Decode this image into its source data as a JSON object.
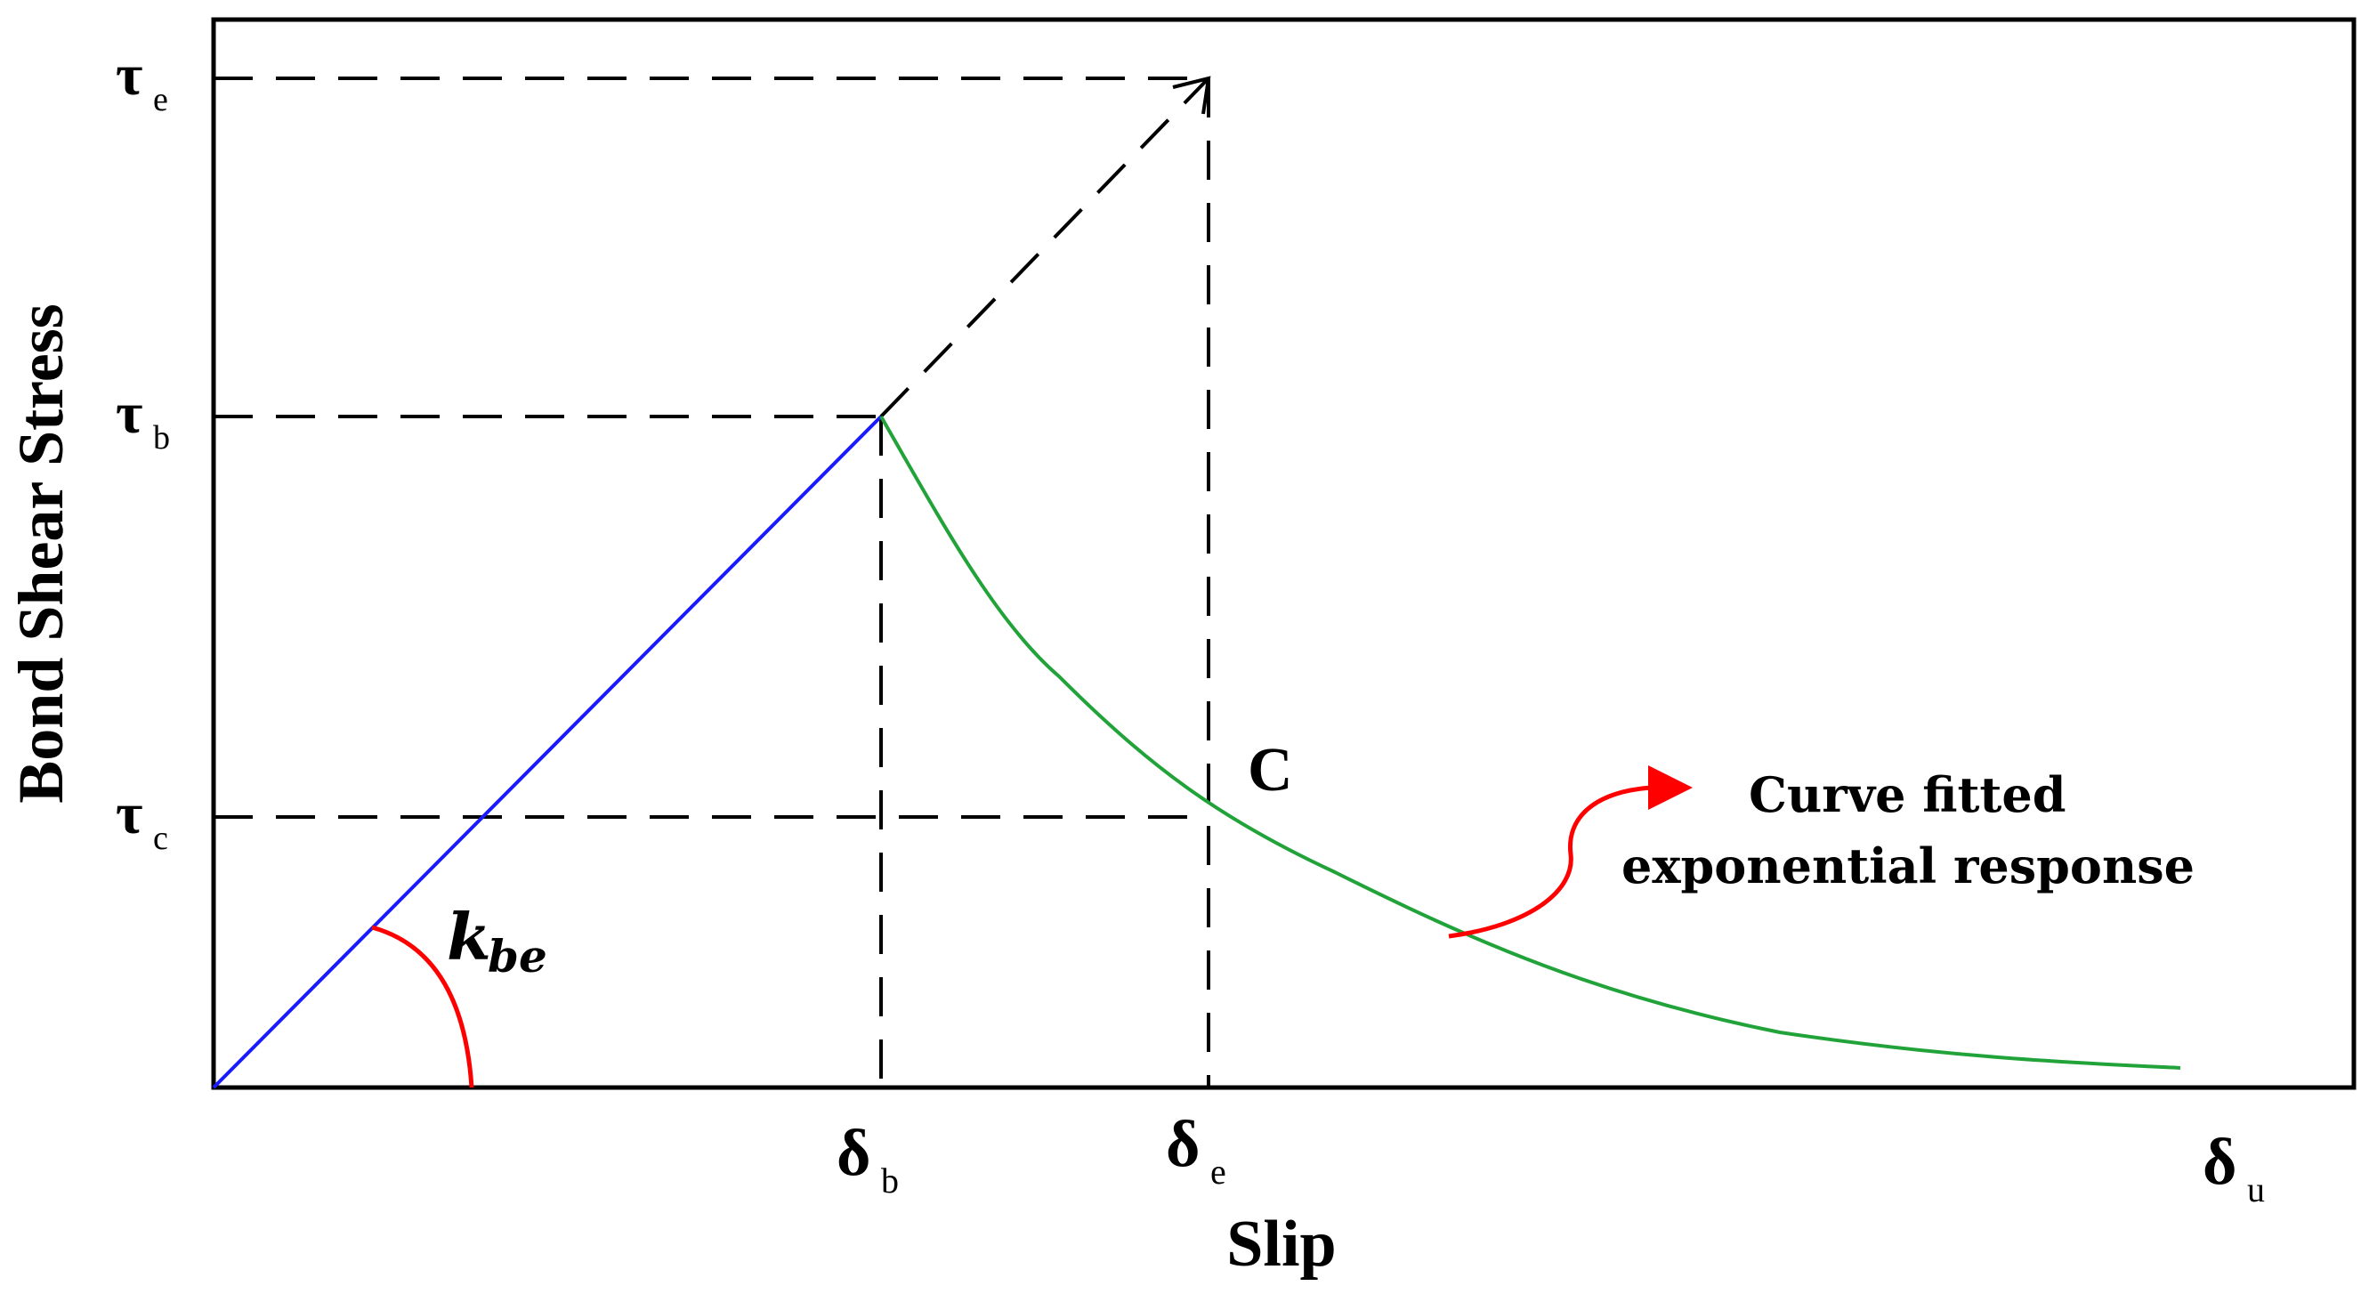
{
  "axes": {
    "y_label": "Bond Shear Stress",
    "x_label": "Slip"
  },
  "y_ticks": [
    {
      "symbol": "τ",
      "sub": "e"
    },
    {
      "symbol": "τ",
      "sub": "b"
    },
    {
      "symbol": "τ",
      "sub": "c"
    }
  ],
  "x_ticks": [
    {
      "symbol": "δ",
      "sub": "b"
    },
    {
      "symbol": "δ",
      "sub": "e"
    },
    {
      "symbol": "δ",
      "sub": "u"
    }
  ],
  "point_label": "C",
  "slope_label": {
    "symbol": "k",
    "sub": "be"
  },
  "annotation": {
    "line1": "Curve fitted",
    "line2": "exponential response"
  },
  "colors": {
    "linear_segment": "#1a1aff",
    "exponential_curve": "#22a33a",
    "annotation": "#ff0000",
    "frame": "#000000"
  }
}
